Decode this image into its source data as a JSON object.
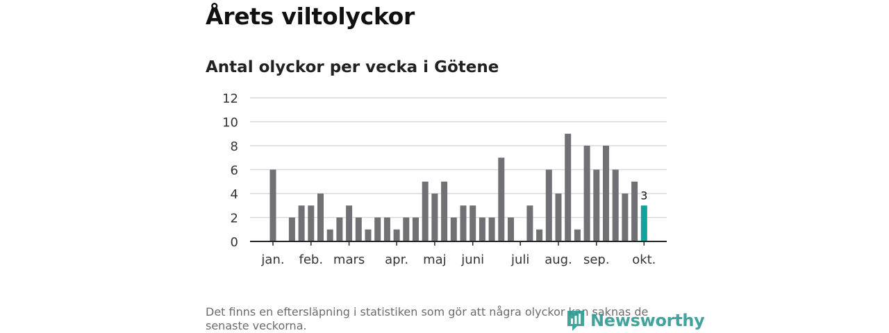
{
  "header": {
    "title": "Årets viltolyckor",
    "subtitle": "Antal olyckor per vecka i Götene"
  },
  "footnote": "Det finns en eftersläpning i statistiken som gör att några olyckor kan saknas de senaste veckorna.",
  "brand": {
    "name": "Newsworthy",
    "icon": "newsworthy-logo-icon"
  },
  "colors": {
    "bar": "#707075",
    "highlight": "#11a39b",
    "grid": "#d9d9d9",
    "axis": "#222222",
    "brand": "#2e9a92"
  },
  "chart_data": {
    "type": "bar",
    "title": "Antal olyckor per vecka i Götene",
    "xlabel": "",
    "ylabel": "",
    "ylim": [
      0,
      12
    ],
    "yticks": [
      0,
      2,
      4,
      6,
      8,
      10,
      12
    ],
    "grid": true,
    "weeks": [
      1,
      2,
      3,
      4,
      5,
      6,
      7,
      8,
      9,
      10,
      11,
      12,
      13,
      14,
      15,
      16,
      17,
      18,
      19,
      20,
      21,
      22,
      23,
      24,
      25,
      26,
      27,
      28,
      29,
      30,
      31,
      32,
      33,
      34,
      35,
      36,
      37,
      38,
      39,
      40,
      41
    ],
    "values": [
      6,
      0,
      2,
      3,
      3,
      4,
      1,
      2,
      3,
      2,
      1,
      2,
      2,
      1,
      2,
      2,
      5,
      4,
      5,
      2,
      3,
      3,
      2,
      2,
      7,
      2,
      0,
      3,
      1,
      6,
      4,
      9,
      1,
      8,
      6,
      8,
      6,
      4,
      5,
      3,
      0
    ],
    "highlight_index": 39,
    "highlight_label": "3",
    "month_labels": [
      {
        "label": "jan.",
        "week": 1
      },
      {
        "label": "feb.",
        "week": 5
      },
      {
        "label": "mars",
        "week": 9
      },
      {
        "label": "apr.",
        "week": 14
      },
      {
        "label": "maj",
        "week": 18
      },
      {
        "label": "juni",
        "week": 22
      },
      {
        "label": "juli",
        "week": 27
      },
      {
        "label": "aug.",
        "week": 31
      },
      {
        "label": "sep.",
        "week": 35
      },
      {
        "label": "okt.",
        "week": 40
      }
    ]
  }
}
